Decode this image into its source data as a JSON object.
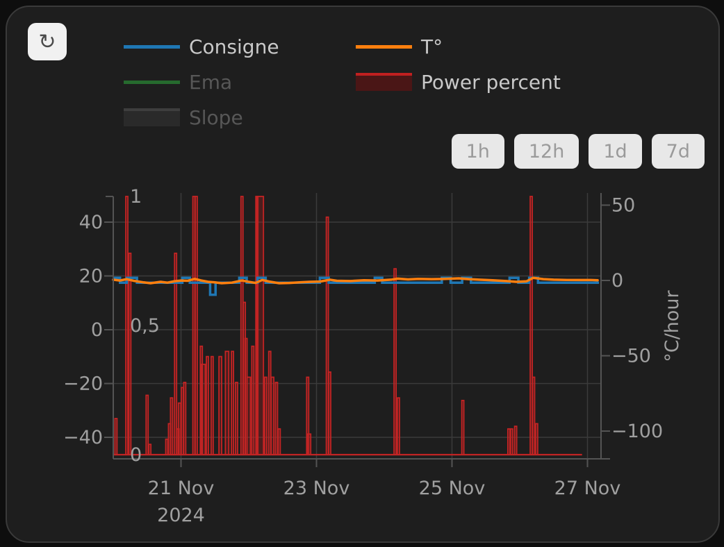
{
  "toolbar": {
    "refresh_icon": "↻"
  },
  "legend": {
    "columns": [
      {
        "items": [
          {
            "label": "Consigne",
            "type": "line",
            "color": "#1f77b4",
            "active": true
          },
          {
            "label": "Ema",
            "type": "line",
            "color": "#266a2e",
            "active": false
          },
          {
            "label": "Slope",
            "type": "box",
            "fill": "#2a2a2a",
            "stroke": "#3e3e3e",
            "active": false
          }
        ]
      },
      {
        "items": [
          {
            "label": "T°",
            "type": "line",
            "color": "#ff7f0e",
            "active": true
          },
          {
            "label": "Power percent",
            "type": "box",
            "fill": "#4a1616",
            "stroke": "#c02020",
            "active": true
          }
        ]
      }
    ]
  },
  "range_buttons": [
    {
      "label": "1h"
    },
    {
      "label": "12h"
    },
    {
      "label": "1d"
    },
    {
      "label": "7d"
    }
  ],
  "chart_data": {
    "type": "mixed: bar + step-line + line",
    "title": "",
    "x_axis": {
      "unit": "date",
      "day0": "20 Nov 2024 00:00",
      "range_days": [
        0,
        7.2
      ],
      "ticks": [
        {
          "day": 1,
          "label": "21 Nov"
        },
        {
          "day": 3,
          "label": "23 Nov"
        },
        {
          "day": 5,
          "label": "25 Nov"
        },
        {
          "day": 7,
          "label": "27 Nov"
        }
      ],
      "year_label": "2024"
    },
    "left_axis": {
      "unit": "°C",
      "range": [
        -48,
        51
      ],
      "ticks": [
        {
          "value": 40,
          "label": "40"
        },
        {
          "value": 20,
          "label": "20"
        },
        {
          "value": 0,
          "label": "0"
        },
        {
          "value": -20,
          "label": "−20"
        },
        {
          "value": -40,
          "label": "−40"
        }
      ]
    },
    "power_axis": {
      "unit": "fraction",
      "range": [
        0,
        1
      ],
      "ticks": [
        {
          "value": 1,
          "label": "1"
        },
        {
          "value": 0.5,
          "label": "0,5"
        },
        {
          "value": 0,
          "label": "0"
        }
      ]
    },
    "right_axis": {
      "label": "°C/hour",
      "range": [
        -118,
        58
      ],
      "ticks": [
        {
          "value": 50,
          "label": "50"
        },
        {
          "value": 0,
          "label": "0"
        },
        {
          "value": -50,
          "label": "−50"
        },
        {
          "value": -100,
          "label": "−100"
        }
      ]
    },
    "series": {
      "consigne": {
        "name": "Consigne",
        "color": "#1f77b4",
        "axis": "left",
        "segments_day_day_degC": [
          [
            0.0,
            0.1,
            19.3
          ],
          [
            0.1,
            0.2,
            17.5
          ],
          [
            0.2,
            0.35,
            19.3
          ],
          [
            0.35,
            1.02,
            17.5
          ],
          [
            1.02,
            1.13,
            19.3
          ],
          [
            1.13,
            1.43,
            17.5
          ],
          [
            1.43,
            1.51,
            13.0
          ],
          [
            1.51,
            1.86,
            17.5
          ],
          [
            1.86,
            1.97,
            19.3
          ],
          [
            1.97,
            2.13,
            17.5
          ],
          [
            2.13,
            2.25,
            19.3
          ],
          [
            2.25,
            3.05,
            17.5
          ],
          [
            3.05,
            3.18,
            19.3
          ],
          [
            3.18,
            3.86,
            17.5
          ],
          [
            3.86,
            3.97,
            19.3
          ],
          [
            3.97,
            4.85,
            17.5
          ],
          [
            4.85,
            4.98,
            19.3
          ],
          [
            4.98,
            5.15,
            17.5
          ],
          [
            5.15,
            5.28,
            19.3
          ],
          [
            5.28,
            5.85,
            17.5
          ],
          [
            5.85,
            5.98,
            19.3
          ],
          [
            5.98,
            6.14,
            17.5
          ],
          [
            6.14,
            6.27,
            19.3
          ],
          [
            6.27,
            7.17,
            17.5
          ]
        ]
      },
      "temperature": {
        "name": "T°",
        "color": "#ff7f0e",
        "axis": "left",
        "points_day_degC": [
          [
            0,
            18.6
          ],
          [
            0.1,
            18.3
          ],
          [
            0.2,
            18.8
          ],
          [
            0.3,
            18.2
          ],
          [
            0.45,
            17.6
          ],
          [
            0.55,
            17.3
          ],
          [
            0.7,
            17.8
          ],
          [
            0.8,
            17.5
          ],
          [
            0.9,
            18.0
          ],
          [
            1.0,
            18.3
          ],
          [
            1.1,
            18.2
          ],
          [
            1.2,
            18.9
          ],
          [
            1.3,
            18.3
          ],
          [
            1.4,
            17.8
          ],
          [
            1.5,
            17.6
          ],
          [
            1.6,
            17.3
          ],
          [
            1.75,
            17.5
          ],
          [
            1.9,
            18.3
          ],
          [
            2.0,
            17.8
          ],
          [
            2.1,
            17.4
          ],
          [
            2.2,
            18.5
          ],
          [
            2.3,
            17.9
          ],
          [
            2.45,
            17.3
          ],
          [
            2.6,
            17.4
          ],
          [
            2.75,
            17.6
          ],
          [
            2.9,
            17.8
          ],
          [
            3.05,
            17.9
          ],
          [
            3.2,
            18.6
          ],
          [
            3.3,
            18.2
          ],
          [
            3.5,
            18.1
          ],
          [
            3.7,
            18.4
          ],
          [
            3.9,
            18.3
          ],
          [
            4.1,
            18.6
          ],
          [
            4.2,
            19.0
          ],
          [
            4.35,
            18.7
          ],
          [
            4.5,
            18.9
          ],
          [
            4.7,
            18.8
          ],
          [
            4.9,
            18.9
          ],
          [
            5.1,
            19.1
          ],
          [
            5.25,
            18.8
          ],
          [
            5.4,
            18.6
          ],
          [
            5.6,
            18.4
          ],
          [
            5.8,
            18.1
          ],
          [
            5.95,
            17.8
          ],
          [
            6.1,
            18.0
          ],
          [
            6.2,
            19.3
          ],
          [
            6.35,
            18.8
          ],
          [
            6.5,
            18.6
          ],
          [
            6.7,
            18.5
          ],
          [
            6.9,
            18.5
          ],
          [
            7.05,
            18.5
          ],
          [
            7.15,
            18.4
          ]
        ]
      },
      "power_percent": {
        "name": "Power percent",
        "axis": "power",
        "stroke": "#c32424",
        "fill_rgba": "rgba(200,35,35,0.27)",
        "baseline_days": [
          0,
          6.92
        ],
        "bars_day_frac_width": [
          [
            0.04,
            0.14,
            null
          ],
          [
            0.2,
            1.0,
            null
          ],
          [
            0.245,
            0.78,
            null
          ],
          [
            0.5,
            0.23,
            null
          ],
          [
            0.54,
            0.04,
            null
          ],
          [
            0.79,
            0.06,
            null
          ],
          [
            0.83,
            0.12,
            null
          ],
          [
            0.86,
            0.22,
            0.03
          ],
          [
            0.92,
            0.78,
            null
          ],
          [
            0.955,
            0.1,
            null
          ],
          [
            0.98,
            0.2,
            0.035
          ],
          [
            1.02,
            0.26,
            0.03
          ],
          [
            1.055,
            0.28,
            null
          ],
          [
            1.19,
            1.0,
            null
          ],
          [
            1.225,
            1.0,
            null
          ],
          [
            1.3,
            0.42,
            null
          ],
          [
            1.33,
            0.35,
            0.055
          ],
          [
            1.39,
            0.38,
            null
          ],
          [
            1.46,
            0.38,
            0.03
          ],
          [
            1.58,
            0.38,
            0.04
          ],
          [
            1.68,
            0.4,
            0.05
          ],
          [
            1.76,
            0.4,
            null
          ],
          [
            1.82,
            0.28,
            0.03
          ],
          [
            1.9,
            1.0,
            null
          ],
          [
            1.935,
            0.59,
            null
          ],
          [
            1.96,
            0.45,
            null
          ],
          [
            2.0,
            0.3,
            0.05
          ],
          [
            2.06,
            0.42,
            null
          ],
          [
            2.12,
            1.0,
            null
          ],
          [
            2.17,
            1.0,
            0.095
          ],
          [
            2.25,
            0.3,
            null
          ],
          [
            2.31,
            0.4,
            null
          ],
          [
            2.35,
            0.3,
            0.04
          ],
          [
            2.41,
            0.28,
            null
          ],
          [
            2.45,
            0.1,
            null
          ],
          [
            2.87,
            0.3,
            null
          ],
          [
            2.89,
            0.08,
            0.05
          ],
          [
            3.16,
            0.92,
            0.03
          ],
          [
            3.195,
            0.32,
            null
          ],
          [
            4.16,
            0.72,
            null
          ],
          [
            4.21,
            0.22,
            null
          ],
          [
            5.16,
            0.21,
            null
          ],
          [
            5.84,
            0.1,
            null
          ],
          [
            5.88,
            0.1,
            null
          ],
          [
            5.94,
            0.11,
            null
          ],
          [
            6.17,
            1.0,
            0.03
          ],
          [
            6.205,
            0.3,
            null
          ],
          [
            6.25,
            0.12,
            null
          ]
        ]
      },
      "ema": {
        "name": "Ema",
        "visible": false
      },
      "slope": {
        "name": "Slope",
        "visible": false
      }
    },
    "colors": {
      "background": "#1e1e1e",
      "grid": "#3b3b3b",
      "axis": "#545454",
      "tick_label": "#a0a0a0",
      "legend_active": "#c9c9c9",
      "legend_inactive": "#575757"
    },
    "legend_position": "top-left",
    "grid": true
  }
}
